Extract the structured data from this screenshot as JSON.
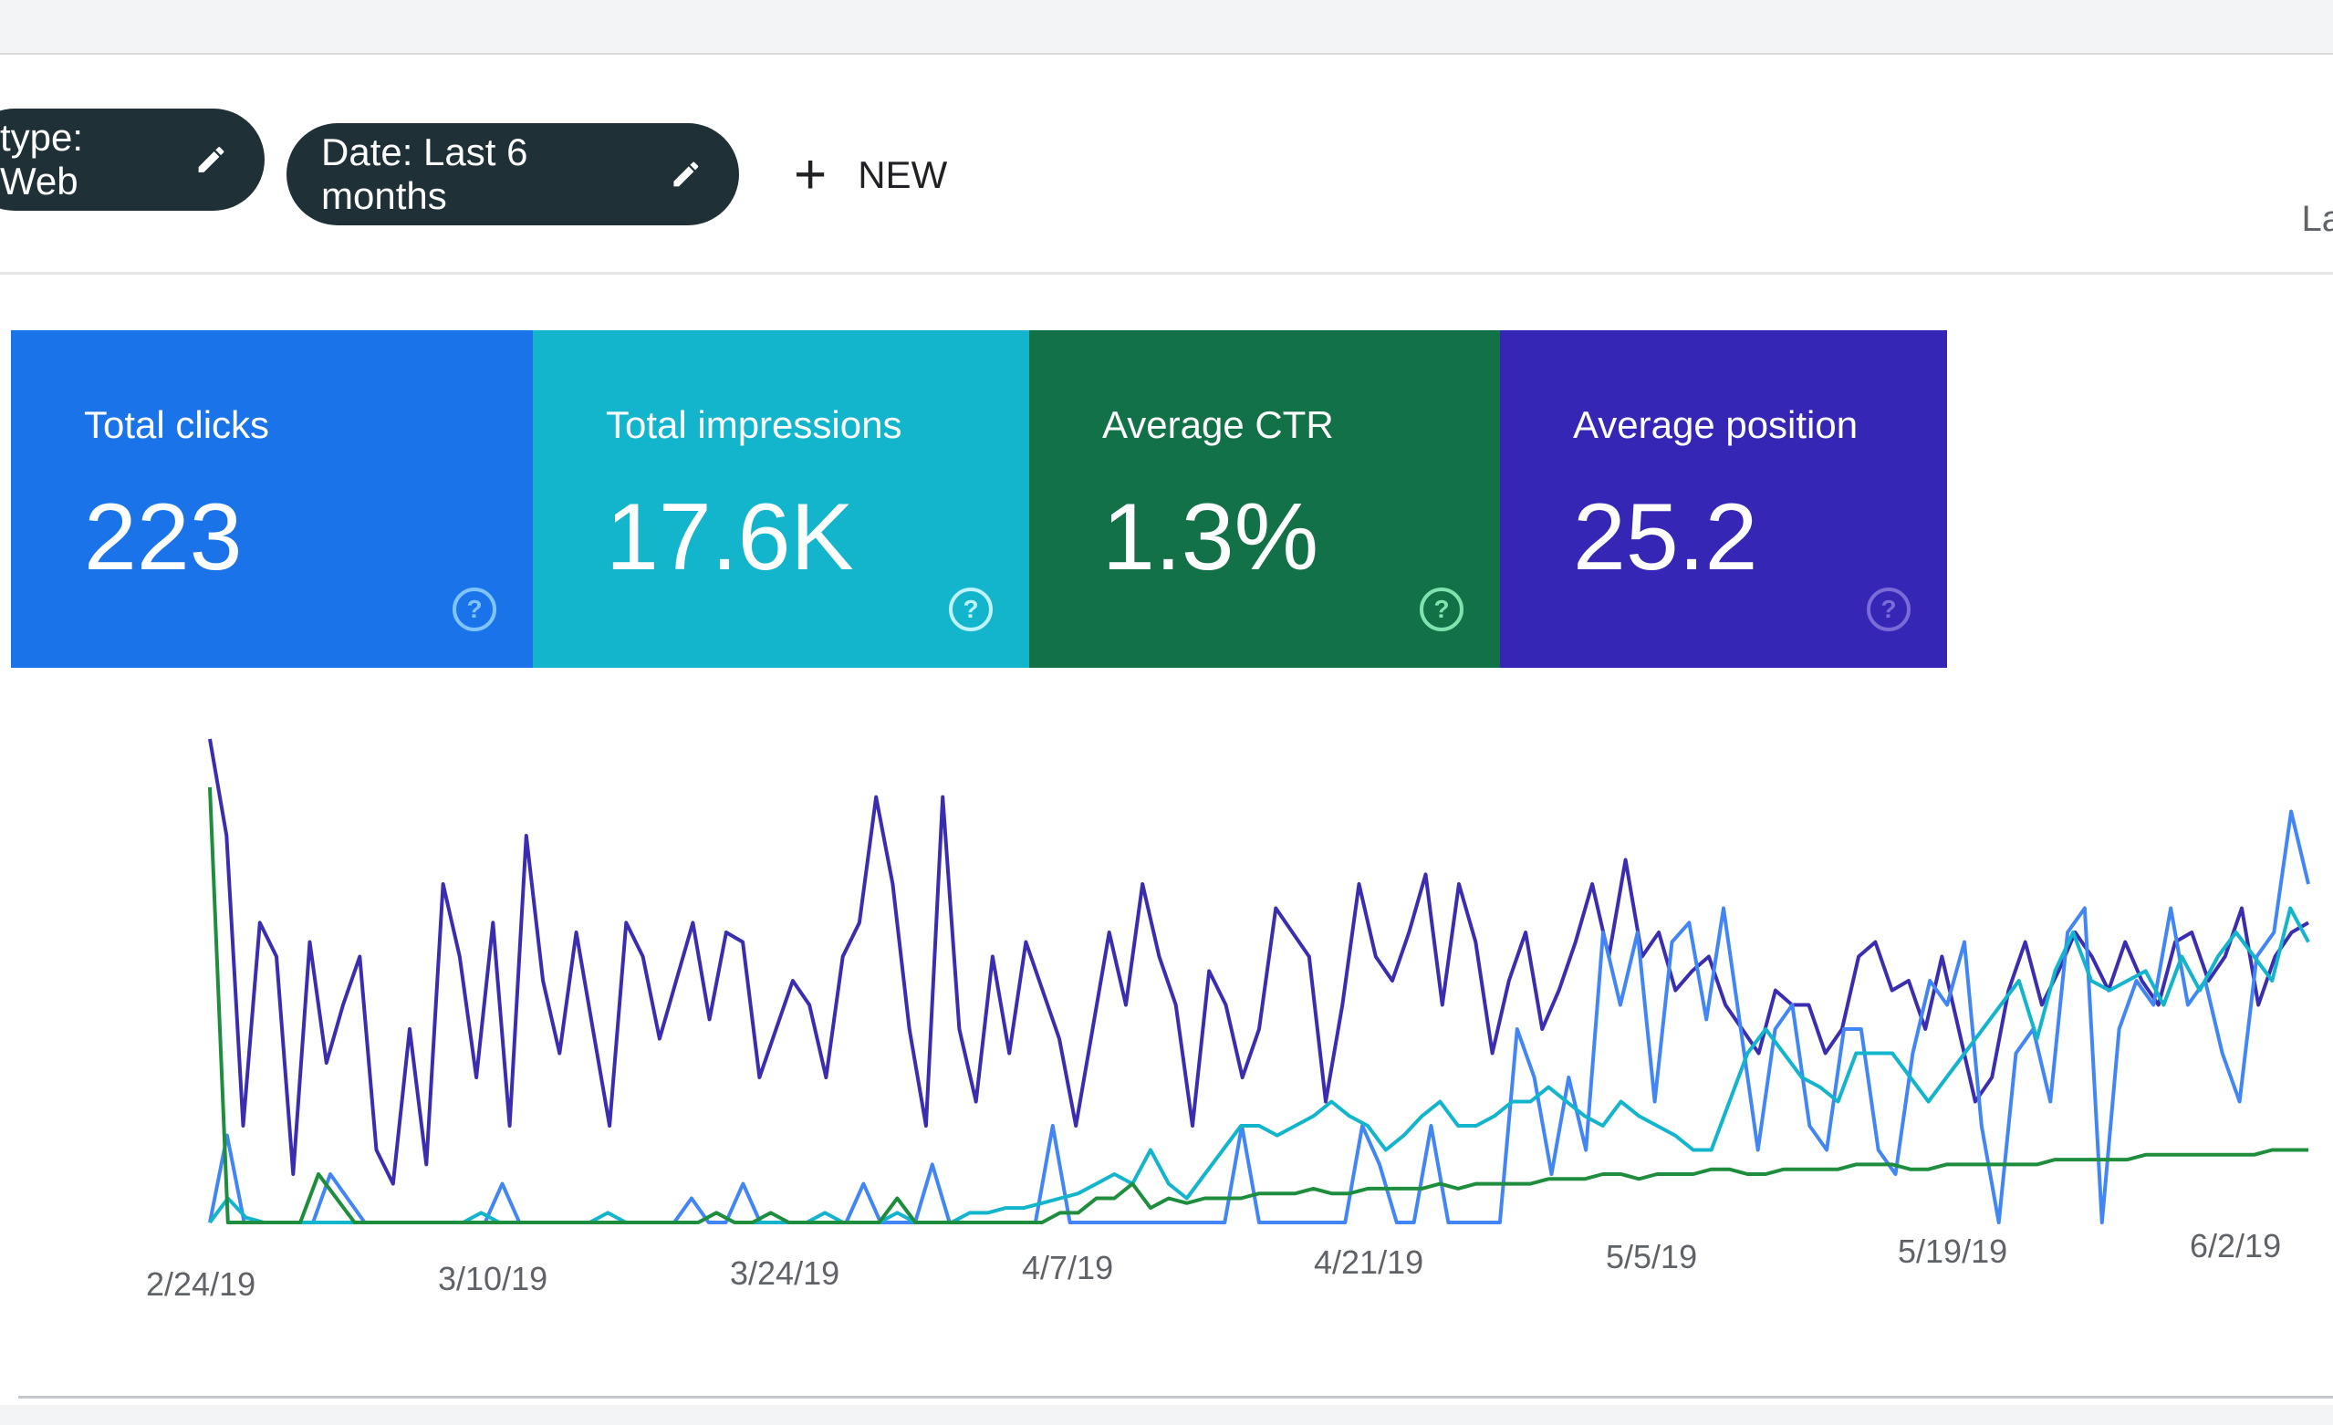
{
  "filters": {
    "type_chip": "type: Web",
    "date_chip": "Date: Last 6 months",
    "new_label": "NEW",
    "edge_text": "La"
  },
  "cards": [
    {
      "label": "Total clicks",
      "value": "223",
      "color": "#1a73e8"
    },
    {
      "label": "Total impressions",
      "value": "17.6K",
      "color": "#12b5cb"
    },
    {
      "label": "Average CTR",
      "value": "1.3%",
      "color": "#137148"
    },
    {
      "label": "Average position",
      "value": "25.2",
      "color": "#3526b5"
    }
  ],
  "icons": {
    "edit": "pencil-icon",
    "add": "plus-icon",
    "help": "help-circle-icon"
  },
  "chart_data": {
    "type": "line",
    "x_tick_labels": [
      "2/24/19",
      "3/10/19",
      "3/24/19",
      "4/7/19",
      "4/21/19",
      "5/5/19",
      "5/19/19",
      "6/2/19"
    ],
    "ylim": [
      0,
      100
    ],
    "grid": false,
    "series": [
      {
        "color": "#3b2db0",
        "values": [
          100,
          80,
          20,
          62,
          55,
          10,
          58,
          33,
          45,
          55,
          15,
          8,
          40,
          12,
          70,
          55,
          30,
          62,
          20,
          80,
          50,
          35,
          60,
          40,
          20,
          62,
          55,
          38,
          50,
          62,
          42,
          60,
          58,
          30,
          40,
          50,
          45,
          30,
          55,
          62,
          88,
          70,
          40,
          20,
          88,
          40,
          25,
          55,
          35,
          58,
          48,
          38,
          20,
          40,
          60,
          45,
          70,
          55,
          45,
          20,
          52,
          45,
          30,
          40,
          65,
          60,
          55,
          25,
          45,
          70,
          55,
          50,
          60,
          72,
          45,
          70,
          58,
          35,
          50,
          60,
          40,
          48,
          58,
          70,
          55,
          75,
          55,
          60,
          48,
          52,
          55,
          45,
          40,
          35,
          48,
          45,
          45,
          35,
          40,
          55,
          58,
          48,
          50,
          40,
          55,
          40,
          25,
          30,
          48,
          58,
          45,
          52,
          60,
          55,
          48,
          58,
          50,
          45,
          58,
          60,
          50,
          55,
          65,
          45,
          55,
          60,
          62
        ]
      },
      {
        "color": "#4285f4",
        "values": [
          0,
          18,
          0,
          0,
          0,
          0,
          0,
          10,
          5,
          0,
          0,
          0,
          0,
          0,
          0,
          0,
          0,
          8,
          0,
          0,
          0,
          0,
          0,
          0,
          0,
          0,
          0,
          0,
          5,
          0,
          0,
          8,
          0,
          0,
          0,
          0,
          0,
          0,
          8,
          0,
          0,
          0,
          12,
          0,
          0,
          0,
          0,
          0,
          0,
          20,
          0,
          0,
          0,
          0,
          0,
          0,
          0,
          0,
          0,
          0,
          20,
          0,
          0,
          0,
          0,
          0,
          0,
          20,
          12,
          0,
          0,
          20,
          0,
          0,
          0,
          0,
          40,
          30,
          10,
          30,
          15,
          60,
          45,
          60,
          25,
          58,
          62,
          42,
          65,
          40,
          15,
          40,
          45,
          20,
          15,
          40,
          40,
          15,
          10,
          35,
          50,
          45,
          58,
          20,
          0,
          35,
          40,
          25,
          60,
          65,
          0,
          40,
          50,
          45,
          65,
          45,
          50,
          35,
          25,
          55,
          60,
          85,
          70
        ]
      },
      {
        "color": "#12b5cb",
        "values": [
          0,
          5,
          1,
          0,
          0,
          0,
          0,
          0,
          0,
          0,
          0,
          0,
          0,
          0,
          0,
          2,
          0,
          0,
          0,
          0,
          0,
          0,
          2,
          0,
          0,
          0,
          0,
          0,
          2,
          0,
          0,
          0,
          0,
          0,
          2,
          0,
          0,
          0,
          2,
          0,
          0,
          0,
          2,
          2,
          3,
          3,
          4,
          5,
          6,
          8,
          10,
          8,
          15,
          8,
          5,
          10,
          15,
          20,
          20,
          18,
          20,
          22,
          25,
          22,
          20,
          15,
          18,
          22,
          25,
          20,
          20,
          22,
          25,
          25,
          28,
          25,
          22,
          20,
          25,
          22,
          20,
          18,
          15,
          15,
          25,
          35,
          40,
          35,
          30,
          28,
          25,
          35,
          35,
          35,
          30,
          25,
          30,
          35,
          40,
          45,
          50,
          38,
          52,
          60,
          50,
          48,
          50,
          52,
          45,
          55,
          48,
          55,
          60,
          55,
          50,
          65,
          58
        ]
      },
      {
        "color": "#1e8e3e",
        "values": [
          90,
          0,
          0,
          0,
          0,
          0,
          10,
          5,
          0,
          0,
          0,
          0,
          0,
          0,
          0,
          0,
          0,
          0,
          0,
          0,
          0,
          0,
          0,
          0,
          0,
          0,
          0,
          0,
          2,
          0,
          0,
          2,
          0,
          0,
          0,
          0,
          0,
          0,
          5,
          0,
          0,
          0,
          0,
          0,
          0,
          0,
          0,
          2,
          2,
          5,
          5,
          8,
          3,
          5,
          4,
          5,
          5,
          5,
          6,
          6,
          6,
          7,
          6,
          6,
          7,
          7,
          7,
          7,
          8,
          7,
          8,
          8,
          8,
          8,
          9,
          9,
          9,
          10,
          10,
          9,
          10,
          10,
          10,
          11,
          11,
          10,
          10,
          11,
          11,
          11,
          11,
          12,
          12,
          12,
          11,
          11,
          12,
          12,
          12,
          12,
          12,
          12,
          13,
          13,
          13,
          13,
          13,
          14,
          14,
          14,
          14,
          14,
          14,
          14,
          15,
          15,
          15
        ]
      }
    ]
  }
}
